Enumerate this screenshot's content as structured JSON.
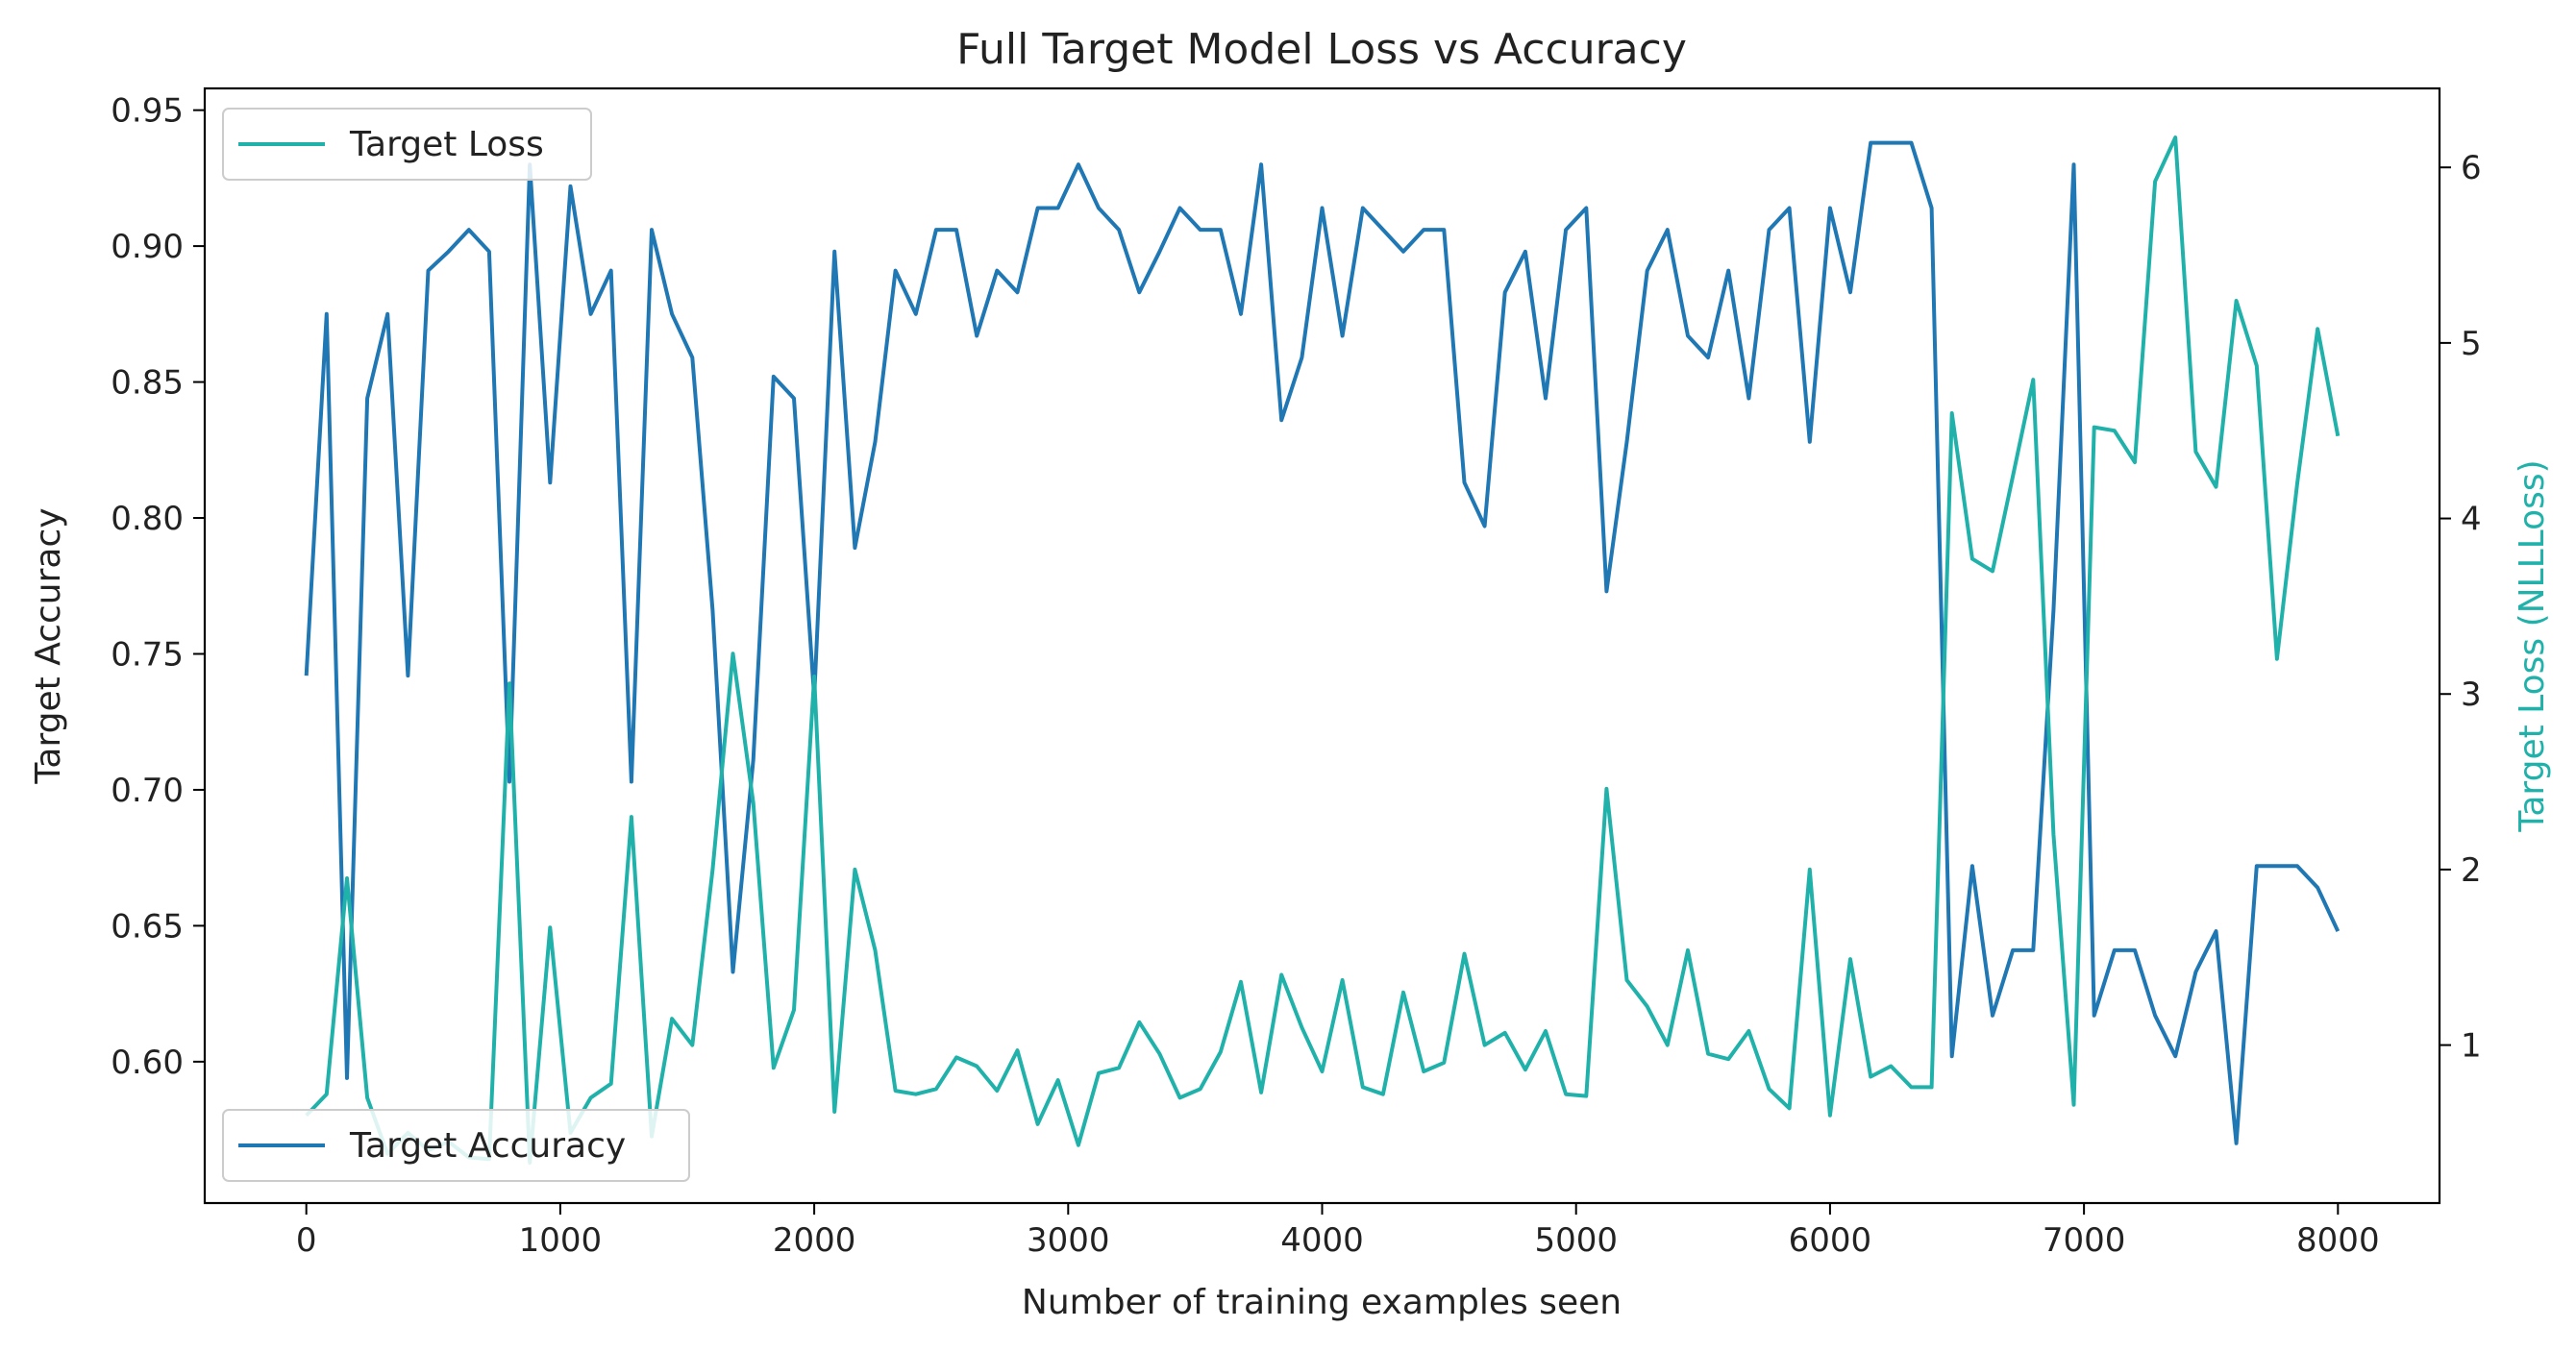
{
  "chart_data": {
    "type": "line",
    "title": "Full Target Model Loss vs Accuracy",
    "xlabel": "Number of training examples seen",
    "ylabel_left": "Target Accuracy",
    "ylabel_right": "Target Loss (NLLLoss)",
    "xlim": [
      -400,
      8400
    ],
    "ylim_left": [
      0.548,
      0.958
    ],
    "ylim_right": [
      0.1,
      6.45
    ],
    "x_ticks": [
      0,
      1000,
      2000,
      3000,
      4000,
      5000,
      6000,
      7000,
      8000
    ],
    "y_left_ticks": [
      0.6,
      0.65,
      0.7,
      0.75,
      0.8,
      0.85,
      0.9,
      0.95
    ],
    "y_right_ticks": [
      1,
      2,
      3,
      4,
      5,
      6
    ],
    "grid": false,
    "colors": {
      "accuracy": "#1f77b4",
      "loss": "#20b2aa",
      "axis": "#000000"
    },
    "legends": [
      {
        "label": "Target Loss",
        "series": "loss",
        "placement": "upper-left"
      },
      {
        "label": "Target Accuracy",
        "series": "accuracy",
        "placement": "lower-left"
      }
    ],
    "x": [
      0,
      80,
      160,
      240,
      320,
      400,
      480,
      560,
      640,
      720,
      800,
      880,
      960,
      1040,
      1120,
      1200,
      1280,
      1360,
      1440,
      1520,
      1600,
      1680,
      1760,
      1840,
      1920,
      2000,
      2080,
      2160,
      2240,
      2320,
      2400,
      2480,
      2560,
      2640,
      2720,
      2800,
      2880,
      2960,
      3040,
      3120,
      3200,
      3280,
      3360,
      3440,
      3520,
      3600,
      3680,
      3760,
      3840,
      3920,
      4000,
      4080,
      4160,
      4240,
      4320,
      4400,
      4480,
      4560,
      4640,
      4720,
      4800,
      4880,
      4960,
      5040,
      5120,
      5200,
      5280,
      5360,
      5440,
      5520,
      5600,
      5680,
      5760,
      5840,
      5920,
      6000,
      6080,
      6160,
      6240,
      6320,
      6400,
      6480,
      6560,
      6640,
      6720,
      6800,
      6880,
      6960,
      7040,
      7120,
      7200,
      7280,
      7360,
      7440,
      7520,
      7600,
      7680,
      7760,
      7840,
      7920,
      8000
    ],
    "series": [
      {
        "key": "accuracy",
        "axis": "left",
        "values": [
          0.742,
          0.875,
          0.594,
          0.844,
          0.875,
          0.742,
          0.891,
          0.898,
          0.906,
          0.898,
          0.703,
          0.93,
          0.813,
          0.922,
          0.875,
          0.891,
          0.703,
          0.906,
          0.875,
          0.859,
          0.766,
          0.633,
          0.711,
          0.852,
          0.844,
          0.734,
          0.898,
          0.789,
          0.828,
          0.891,
          0.875,
          0.906,
          0.906,
          0.867,
          0.891,
          0.883,
          0.914,
          0.914,
          0.93,
          0.914,
          0.906,
          0.883,
          0.898,
          0.914,
          0.906,
          0.906,
          0.875,
          0.93,
          0.836,
          0.859,
          0.914,
          0.867,
          0.914,
          0.906,
          0.898,
          0.906,
          0.906,
          0.813,
          0.797,
          0.883,
          0.898,
          0.844,
          0.906,
          0.914,
          0.773,
          0.828,
          0.891,
          0.906,
          0.867,
          0.859,
          0.891,
          0.844,
          0.906,
          0.914,
          0.828,
          0.914,
          0.883,
          0.938,
          0.938,
          0.938,
          0.914,
          0.602,
          0.672,
          0.617,
          0.641,
          0.641,
          0.766,
          0.93,
          0.617,
          0.641,
          0.641,
          0.617,
          0.602,
          0.633,
          0.648,
          0.57,
          0.672,
          0.672,
          0.672,
          0.664,
          0.648
        ]
      },
      {
        "key": "loss",
        "axis": "right",
        "values": [
          0.6,
          0.72,
          1.95,
          0.7,
          0.38,
          0.5,
          0.4,
          0.45,
          0.36,
          0.35,
          3.06,
          0.33,
          1.67,
          0.5,
          0.7,
          0.78,
          2.3,
          0.48,
          1.15,
          1.0,
          2.0,
          3.23,
          2.38,
          0.87,
          1.2,
          3.1,
          0.62,
          2.0,
          1.54,
          0.74,
          0.72,
          0.75,
          0.93,
          0.88,
          0.74,
          0.97,
          0.55,
          0.8,
          0.43,
          0.84,
          0.87,
          1.13,
          0.95,
          0.7,
          0.75,
          0.96,
          1.36,
          0.73,
          1.4,
          1.1,
          0.85,
          1.37,
          0.76,
          0.72,
          1.3,
          0.85,
          0.9,
          1.52,
          1.0,
          1.07,
          0.86,
          1.08,
          0.72,
          0.71,
          2.46,
          1.37,
          1.22,
          1.0,
          1.54,
          0.95,
          0.92,
          1.08,
          0.75,
          0.64,
          2.0,
          0.6,
          1.49,
          0.82,
          0.88,
          0.76,
          0.76,
          4.6,
          3.77,
          3.7,
          4.24,
          4.79,
          2.2,
          0.66,
          4.52,
          4.5,
          4.32,
          5.92,
          6.17,
          4.38,
          4.18,
          5.24,
          4.87,
          3.2,
          4.2,
          5.08,
          4.47
        ]
      }
    ]
  }
}
